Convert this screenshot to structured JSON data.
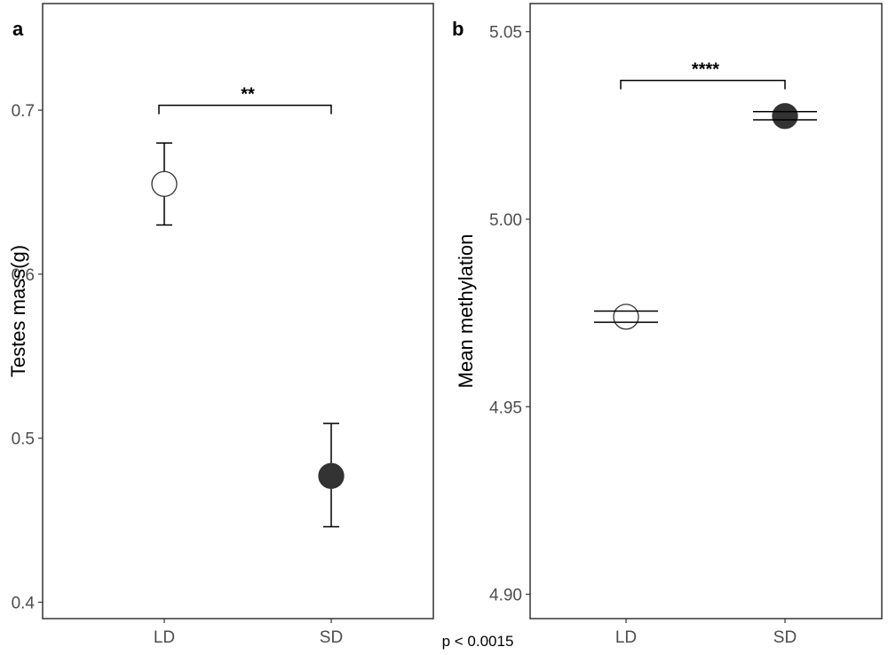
{
  "footnote": "p < 0.0015",
  "chart_data": [
    {
      "type": "scatter",
      "panel_label": "a",
      "xlabel": "",
      "ylabel": "Testes mass(g)",
      "categories": [
        "LD",
        "SD"
      ],
      "ylim": [
        0.39,
        0.765
      ],
      "yticks": [
        0.4,
        0.5,
        0.6,
        0.7
      ],
      "ytick_labels": [
        "0.4",
        "0.5",
        "0.6",
        "0.7"
      ],
      "grid": false,
      "points": [
        {
          "category": "LD",
          "mean": 0.655,
          "lower": 0.63,
          "upper": 0.68,
          "fill": "#ffffff"
        },
        {
          "category": "SD",
          "mean": 0.477,
          "lower": 0.446,
          "upper": 0.509,
          "fill": "#333333"
        }
      ],
      "significance": {
        "from": "LD",
        "to": "SD",
        "y": 0.703,
        "label": "**"
      }
    },
    {
      "type": "scatter",
      "panel_label": "b",
      "xlabel": "",
      "ylabel": "Mean methylation",
      "categories": [
        "LD",
        "SD"
      ],
      "ylim": [
        4.8935,
        5.0575
      ],
      "yticks": [
        4.9,
        4.95,
        5.0,
        5.05
      ],
      "ytick_labels": [
        "4.90",
        "4.95",
        "5.00",
        "5.05"
      ],
      "grid": false,
      "points": [
        {
          "category": "LD",
          "mean": 4.974,
          "lower": 4.9725,
          "upper": 4.9755,
          "fill": "#ffffff"
        },
        {
          "category": "SD",
          "mean": 5.0275,
          "lower": 5.0265,
          "upper": 5.0287,
          "fill": "#333333"
        }
      ],
      "significance": {
        "from": "LD",
        "to": "SD",
        "y": 5.037,
        "label": "****"
      }
    }
  ]
}
